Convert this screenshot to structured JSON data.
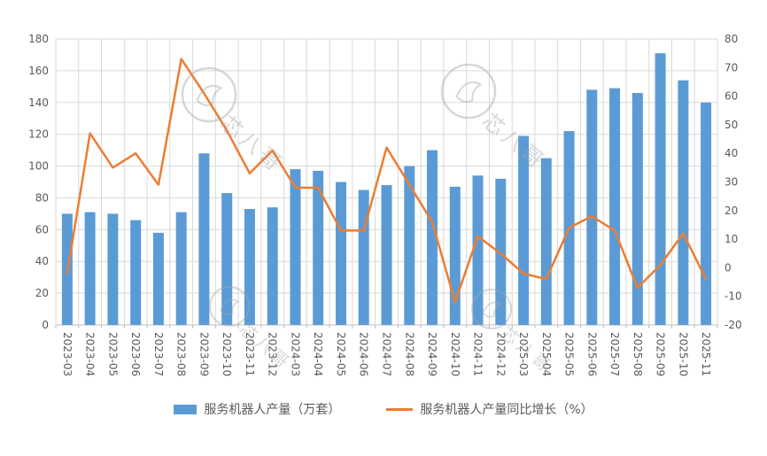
{
  "chart_data": {
    "type": "combo",
    "title": "",
    "categories": [
      "2023-03",
      "2023-04",
      "2023-05",
      "2023-06",
      "2023-07",
      "2023-08",
      "2023-09",
      "2023-10",
      "2023-11",
      "2023-12",
      "2024-03",
      "2024-04",
      "2024-05",
      "2024-06",
      "2024-07",
      "2024-08",
      "2024-09",
      "2024-10",
      "2024-11",
      "2024-12",
      "2025-03",
      "2025-04",
      "2025-05",
      "2025-06",
      "2025-07",
      "2025-08",
      "2025-09",
      "2025-10",
      "2025-11"
    ],
    "series": [
      {
        "name": "服务机器人产量（万套）",
        "type": "bar",
        "axis": "left",
        "color": "#5B9BD5",
        "values": [
          70,
          71,
          70,
          66,
          58,
          71,
          108,
          83,
          73,
          74,
          98,
          97,
          90,
          85,
          88,
          100,
          110,
          87,
          94,
          92,
          119,
          105,
          122,
          148,
          149,
          146,
          171,
          154,
          140
        ]
      },
      {
        "name": "服务机器人产量同比增长（%）",
        "type": "line",
        "axis": "right",
        "color": "#ED7D31",
        "values": [
          -2,
          47,
          35,
          40,
          29,
          73,
          61,
          48,
          33,
          41,
          28,
          28,
          13,
          13,
          42,
          29,
          16,
          -12,
          11,
          5,
          -2,
          -4,
          14,
          18,
          13,
          -7,
          1,
          12,
          -4
        ]
      }
    ],
    "left_axis": {
      "min": 0,
      "max": 180,
      "step": 20,
      "ticks": [
        "0",
        "20",
        "40",
        "60",
        "80",
        "100",
        "120",
        "140",
        "160",
        "180"
      ]
    },
    "right_axis": {
      "min": -20,
      "max": 80,
      "step": 10,
      "ticks": [
        "-20",
        "-10",
        "0",
        "10",
        "20",
        "30",
        "40",
        "50",
        "60",
        "70",
        "80"
      ]
    },
    "grid": {
      "horizontal": true,
      "vertical": true,
      "color": "#D9D9D9"
    },
    "legend_position": "bottom"
  },
  "legend": {
    "bar_label": "服务机器人产量（万套）",
    "line_label": "服务机器人产量同比增长（%）"
  },
  "watermark": {
    "text": "芯八哥"
  },
  "colors": {
    "bar": "#5B9BD5",
    "line": "#ED7D31",
    "grid": "#D9D9D9",
    "axis_text": "#595959",
    "axis_line": "#BFBFBF",
    "watermark": "#A6A6A6",
    "background": "#FFFFFF"
  }
}
